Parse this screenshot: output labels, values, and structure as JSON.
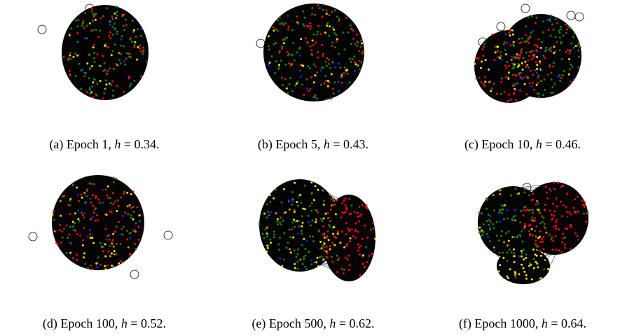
{
  "colors": {
    "green": "#1e7a1e",
    "red": "#e01010",
    "yellow": "#f2e010",
    "blue": "#1a2ad0",
    "orange": "#f08a10",
    "edge": "#000000",
    "background": "#ffffff"
  },
  "panels": [
    {
      "label": "(a) Epoch 1,",
      "h_symbol": "h",
      "h_value": "= 0.34.",
      "h_numeric": 0.34
    },
    {
      "label": "(b) Epoch 5,",
      "h_symbol": "h",
      "h_value": "= 0.43.",
      "h_numeric": 0.43
    },
    {
      "label": "(c) Epoch 10,",
      "h_symbol": "h",
      "h_value": "= 0.46.",
      "h_numeric": 0.46
    },
    {
      "label": "(d) Epoch 100,",
      "h_symbol": "h",
      "h_value": "= 0.52.",
      "h_numeric": 0.52
    },
    {
      "label": "(e) Epoch 500,",
      "h_symbol": "h",
      "h_value": "= 0.62.",
      "h_numeric": 0.62
    },
    {
      "label": "(f) Epoch 1000,",
      "h_symbol": "h",
      "h_value": "= 0.64.",
      "h_numeric": 0.64
    }
  ]
}
